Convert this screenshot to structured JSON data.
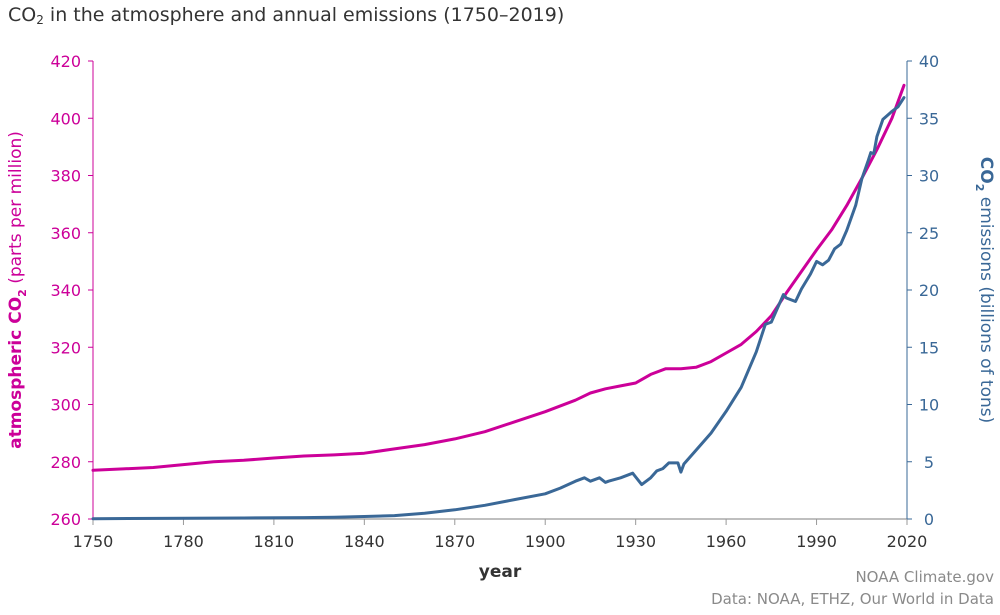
{
  "title": {
    "prefix": "CO",
    "subscript": "2",
    "suffix": " in the atmosphere and annual emissions (1750–2019)"
  },
  "credits": {
    "line1": "NOAA Climate.gov",
    "line2": "Data: NOAA, ETHZ, Our World in Data"
  },
  "colors": {
    "co2_ppm": "#cc0099",
    "emissions": "#3a6897",
    "axis": "#999999",
    "text": "#333333"
  },
  "chart_data": {
    "type": "line",
    "x_axis": {
      "label": "year",
      "range": [
        1750,
        2020
      ],
      "ticks": [
        1750,
        1780,
        1810,
        1840,
        1870,
        1900,
        1930,
        1960,
        1990,
        2020
      ]
    },
    "y_left": {
      "label_prefix": "atmospheric CO",
      "label_sub": "2",
      "label_suffix": " (parts per million)",
      "range": [
        260,
        420
      ],
      "ticks": [
        260,
        280,
        300,
        320,
        340,
        360,
        380,
        400,
        420
      ]
    },
    "y_right": {
      "label_prefix": "CO",
      "label_sub": "2",
      "label_suffix": " emissions (billions of tons)",
      "range": [
        0,
        40
      ],
      "ticks": [
        0,
        5,
        10,
        15,
        20,
        25,
        30,
        35,
        40
      ]
    },
    "grid": false,
    "legend": "none",
    "series": [
      {
        "axis": "left",
        "x": [
          1750,
          1760,
          1770,
          1780,
          1790,
          1800,
          1810,
          1820,
          1830,
          1840,
          1850,
          1860,
          1870,
          1880,
          1890,
          1900,
          1910,
          1915,
          1920,
          1925,
          1930,
          1935,
          1940,
          1945,
          1950,
          1955,
          1960,
          1965,
          1970,
          1975,
          1980,
          1985,
          1990,
          1995,
          2000,
          2005,
          2010,
          2015,
          2019
        ],
        "values": [
          277,
          277.5,
          278,
          279,
          280,
          280.5,
          281.3,
          282,
          282.4,
          283,
          284.5,
          286,
          288,
          290.5,
          294,
          297.5,
          301.5,
          304,
          305.5,
          306.5,
          307.5,
          310.5,
          312.5,
          312.5,
          313,
          315,
          318,
          321,
          325.5,
          331,
          339,
          346.5,
          354,
          361,
          369.5,
          379,
          389,
          400,
          411.5
        ]
      },
      {
        "axis": "right",
        "x": [
          1750,
          1800,
          1820,
          1830,
          1840,
          1850,
          1860,
          1870,
          1880,
          1890,
          1900,
          1905,
          1910,
          1913,
          1915,
          1918,
          1920,
          1921,
          1925,
          1929,
          1932,
          1935,
          1937,
          1939,
          1941,
          1943,
          1944,
          1945,
          1946,
          1950,
          1955,
          1960,
          1965,
          1970,
          1973,
          1975,
          1978,
          1979,
          1980,
          1983,
          1985,
          1988,
          1990,
          1992,
          1994,
          1996,
          1998,
          2000,
          2003,
          2005,
          2007,
          2008,
          2009,
          2010,
          2012,
          2015,
          2017,
          2019
        ],
        "values": [
          0.03,
          0.09,
          0.12,
          0.16,
          0.22,
          0.3,
          0.5,
          0.8,
          1.2,
          1.7,
          2.2,
          2.7,
          3.3,
          3.6,
          3.3,
          3.6,
          3.2,
          3.3,
          3.6,
          4.0,
          3.0,
          3.6,
          4.2,
          4.4,
          4.9,
          4.9,
          4.9,
          4.1,
          4.8,
          6.0,
          7.5,
          9.4,
          11.5,
          14.6,
          17.0,
          17.2,
          19.0,
          19.6,
          19.3,
          19.0,
          20.1,
          21.4,
          22.5,
          22.2,
          22.6,
          23.6,
          24.0,
          25.2,
          27.4,
          29.7,
          31.2,
          32.0,
          31.9,
          33.4,
          34.9,
          35.6,
          36.0,
          36.8
        ]
      }
    ]
  }
}
